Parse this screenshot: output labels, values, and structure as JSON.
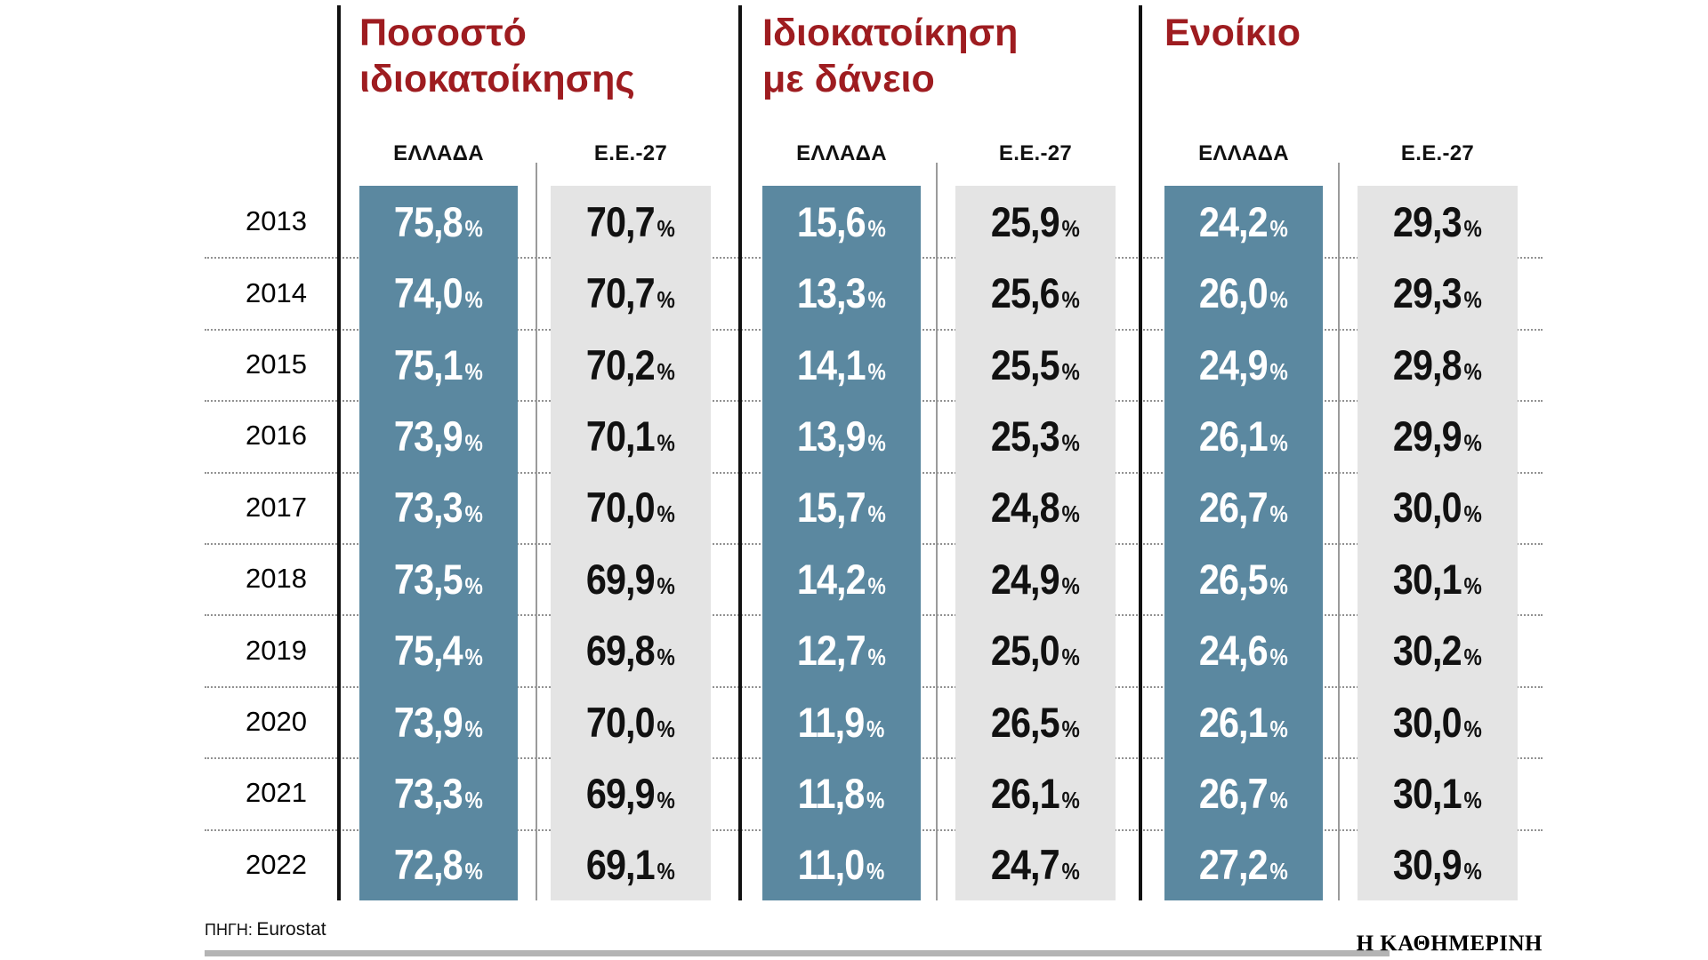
{
  "unit": "%",
  "years": [
    "2013",
    "2014",
    "2015",
    "2016",
    "2017",
    "2018",
    "2019",
    "2020",
    "2021",
    "2022"
  ],
  "col_labels": {
    "greece": "ΕΛΛΑΔΑ",
    "eu": "Ε.Ε.-27"
  },
  "sections": [
    {
      "title_line1": "Ποσοστό",
      "title_line2": "ιδιοκατοίκησης",
      "greece": [
        "75,8",
        "74,0",
        "75,1",
        "73,9",
        "73,3",
        "73,5",
        "75,4",
        "73,9",
        "73,3",
        "72,8"
      ],
      "eu": [
        "70,7",
        "70,7",
        "70,2",
        "70,1",
        "70,0",
        "69,9",
        "69,8",
        "70,0",
        "69,9",
        "69,1"
      ]
    },
    {
      "title_line1": "Ιδιοκατοίκηση",
      "title_line2": "με δάνειο",
      "greece": [
        "15,6",
        "13,3",
        "14,1",
        "13,9",
        "15,7",
        "14,2",
        "12,7",
        "11,9",
        "11,8",
        "11,0"
      ],
      "eu": [
        "25,9",
        "25,6",
        "25,5",
        "25,3",
        "24,8",
        "24,9",
        "25,0",
        "26,5",
        "26,1",
        "24,7"
      ]
    },
    {
      "title_line1": "Ενοίκιο",
      "title_line2": "",
      "greece": [
        "24,2",
        "26,0",
        "24,9",
        "26,1",
        "26,7",
        "26,5",
        "24,6",
        "26,1",
        "26,7",
        "27,2"
      ],
      "eu": [
        "29,3",
        "29,3",
        "29,8",
        "29,9",
        "30,0",
        "30,1",
        "30,2",
        "30,0",
        "30,1",
        "30,9"
      ]
    }
  ],
  "footer": {
    "source_label": "ΠΗΓΗ:",
    "source_value": "Eurostat",
    "brand": "Η ΚΑΘΗΜΕΡΙΝΗ"
  },
  "colors": {
    "accent_red": "#9e1c20",
    "greece_column": "#5b88a0",
    "eu_column": "#e4e4e4",
    "footer_bar": "#b4b4b4"
  },
  "chart_data": {
    "type": "table",
    "categories": [
      "2013",
      "2014",
      "2015",
      "2016",
      "2017",
      "2018",
      "2019",
      "2020",
      "2021",
      "2022"
    ],
    "column_groups": [
      "Ποσοστό ιδιοκατοίκησης",
      "Ιδιοκατοίκηση με δάνειο",
      "Ενοίκιο"
    ],
    "column_subheaders": [
      "ΕΛΛΑΔΑ",
      "Ε.Ε.-27"
    ],
    "unit": "%",
    "series": [
      {
        "name": "Ποσοστό ιδιοκατοίκησης - ΕΛΛΑΔΑ",
        "values": [
          75.8,
          74.0,
          75.1,
          73.9,
          73.3,
          73.5,
          75.4,
          73.9,
          73.3,
          72.8
        ]
      },
      {
        "name": "Ποσοστό ιδιοκατοίκησης - Ε.Ε.-27",
        "values": [
          70.7,
          70.7,
          70.2,
          70.1,
          70.0,
          69.9,
          69.8,
          70.0,
          69.9,
          69.1
        ]
      },
      {
        "name": "Ιδιοκατοίκηση με δάνειο - ΕΛΛΑΔΑ",
        "values": [
          15.6,
          13.3,
          14.1,
          13.9,
          15.7,
          14.2,
          12.7,
          11.9,
          11.8,
          11.0
        ]
      },
      {
        "name": "Ιδιοκατοίκηση με δάνειο - Ε.Ε.-27",
        "values": [
          25.9,
          25.6,
          25.5,
          25.3,
          24.8,
          24.9,
          25.0,
          26.5,
          26.1,
          24.7
        ]
      },
      {
        "name": "Ενοίκιο - ΕΛΛΑΔΑ",
        "values": [
          24.2,
          26.0,
          24.9,
          26.1,
          26.7,
          26.5,
          24.6,
          26.1,
          26.7,
          27.2
        ]
      },
      {
        "name": "Ενοίκιο - Ε.Ε.-27",
        "values": [
          29.3,
          29.3,
          29.8,
          29.9,
          30.0,
          30.1,
          30.2,
          30.0,
          30.1,
          30.9
        ]
      }
    ],
    "source": "ΠΗΓΗ: Eurostat"
  }
}
